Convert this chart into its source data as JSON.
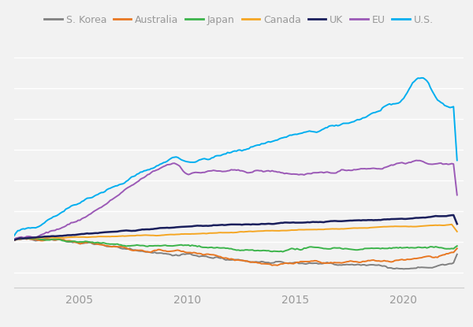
{
  "legend_entries": [
    "U.S.",
    "EU",
    "UK",
    "Canada",
    "Japan",
    "Australia",
    "S. Korea"
  ],
  "colors": {
    "U.S.": "#00AEEF",
    "EU": "#9B59B6",
    "UK": "#1A1F5C",
    "Canada": "#F5A623",
    "Japan": "#3CB44B",
    "Australia": "#E87722",
    "S. Korea": "#808080"
  },
  "background_color": "#F2F2F2",
  "line_width": 1.4,
  "x_ticks": [
    2005,
    2010,
    2015,
    2020
  ],
  "grid_color": "#FFFFFF",
  "tick_color": "#999999",
  "tick_fontsize": 10,
  "ylim": [
    -0.15,
    0.65
  ],
  "xlim": [
    2002.0,
    2022.8
  ]
}
